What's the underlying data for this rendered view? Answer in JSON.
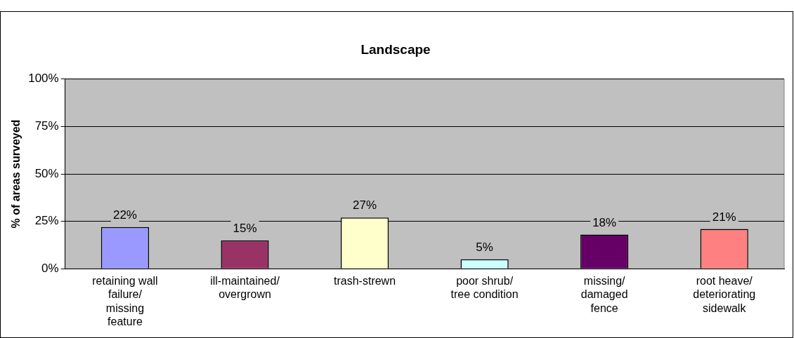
{
  "chart_data": {
    "type": "bar",
    "title": "Landscape",
    "ylabel": "% of areas surveyed",
    "categories": [
      "retaining wall\nfailure/\nmissing\nfeature",
      "ill-maintained/\novergrown",
      "trash-strewn",
      "poor shrub/\ntree condition",
      "missing/\ndamaged\nfence",
      "root heave/\ndeteriorating\nsidewalk"
    ],
    "values": [
      22,
      15,
      27,
      5,
      18,
      21
    ],
    "colors": [
      "#9999ff",
      "#993366",
      "#ffffcc",
      "#ccffff",
      "#660066",
      "#ff8080"
    ],
    "value_labels": [
      "22%",
      "15%",
      "27%",
      "5%",
      "18%",
      "21%"
    ],
    "ylim": [
      0,
      100
    ],
    "yticks": [
      {
        "value": 0,
        "label": "0%"
      },
      {
        "value": 25,
        "label": "25%"
      },
      {
        "value": 50,
        "label": "50%"
      },
      {
        "value": 75,
        "label": "75%"
      },
      {
        "value": 100,
        "label": "100%"
      }
    ],
    "grid": "y",
    "legend": false
  }
}
